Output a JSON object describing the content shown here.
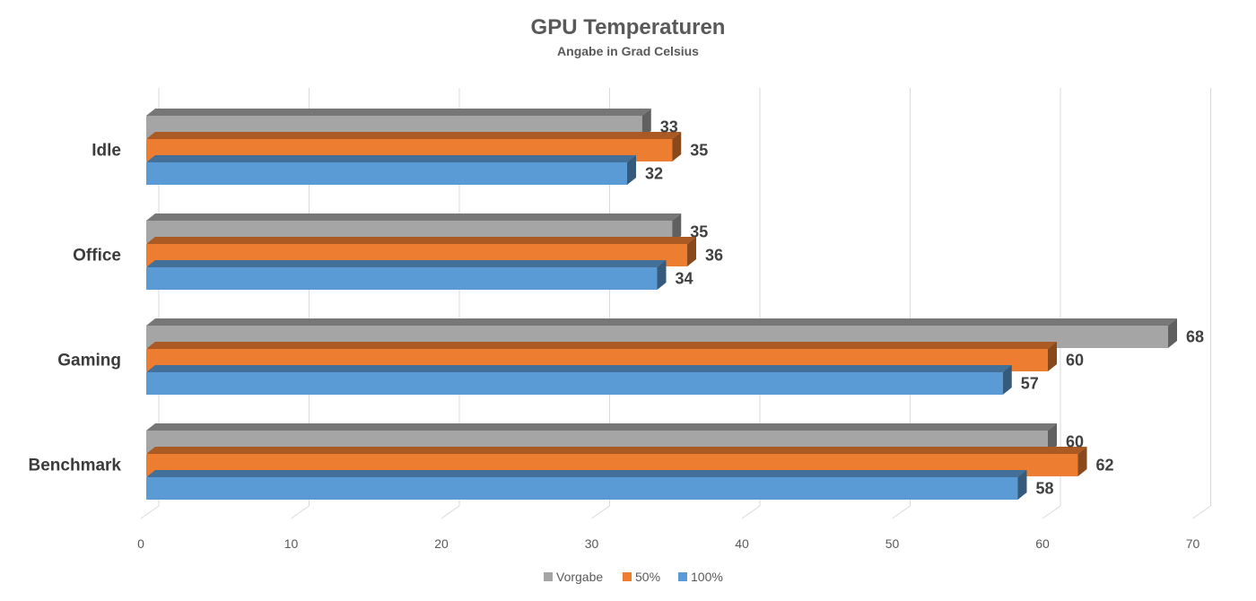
{
  "chart_data": {
    "type": "bar",
    "orientation": "horizontal",
    "style_3d": true,
    "title": "GPU Temperaturen",
    "subtitle": "Angabe in Grad Celsius",
    "categories": [
      "Idle",
      "Office",
      "Gaming",
      "Benchmark"
    ],
    "series": [
      {
        "name": "Vorgabe",
        "color": "#a5a5a5",
        "values": [
          33,
          35,
          68,
          60
        ]
      },
      {
        "name": "50%",
        "color": "#ed7d31",
        "values": [
          35,
          36,
          60,
          62
        ]
      },
      {
        "name": "100%",
        "color": "#5b9bd5",
        "values": [
          32,
          34,
          57,
          58
        ]
      }
    ],
    "xlim": [
      0,
      70
    ],
    "xticks": [
      0,
      10,
      20,
      30,
      40,
      50,
      60,
      70
    ],
    "grid": true,
    "legend_position": "bottom",
    "data_labels": true
  }
}
